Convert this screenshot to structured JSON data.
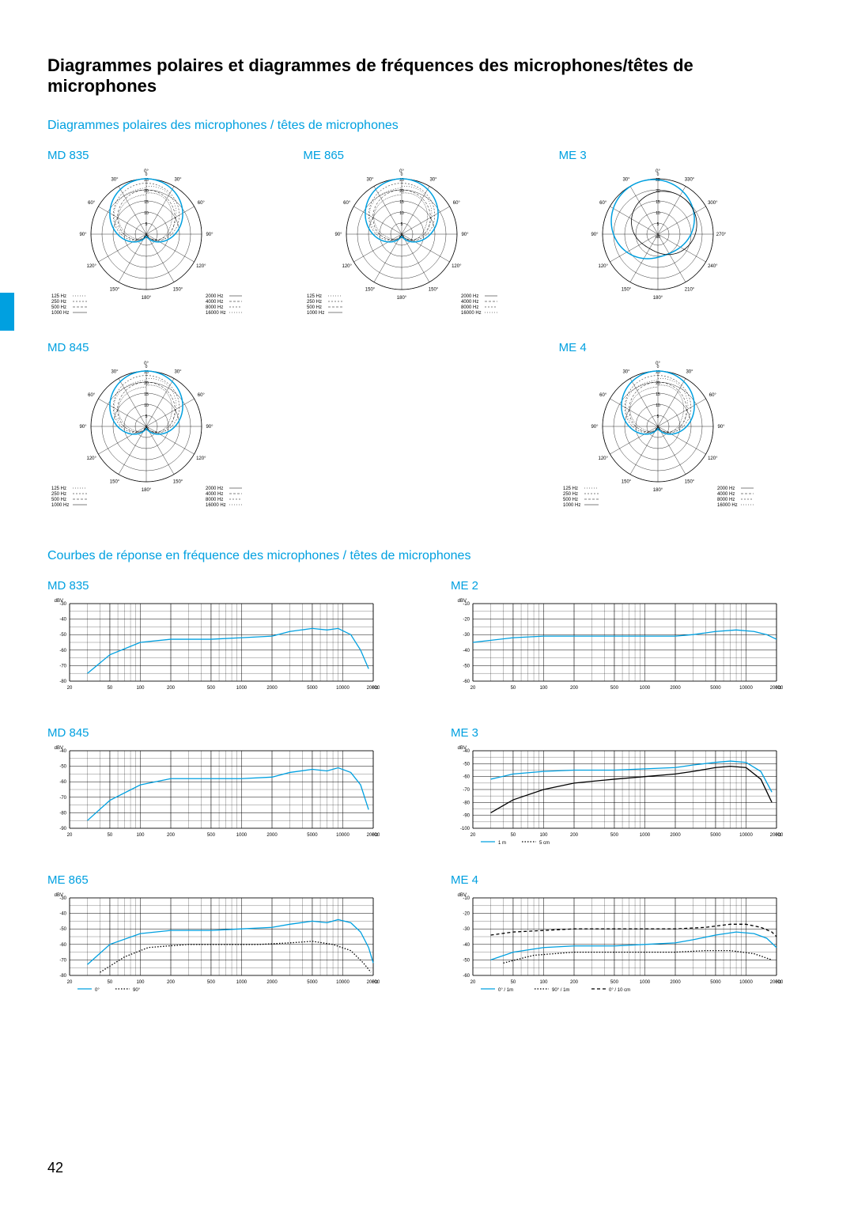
{
  "page": {
    "title": "Diagrammes polaires et diagrammes de fréquences des microphones/têtes de microphones",
    "page_number": "42"
  },
  "sections": {
    "polar": {
      "heading": "Diagrammes polaires des microphones / têtes de microphones"
    },
    "freq": {
      "heading": "Courbes de réponse en fréquence des microphones / têtes de microphones"
    }
  },
  "polar_charts": [
    {
      "id": "md835",
      "title": "MD 835",
      "type": "cardioid",
      "with_legend": true
    },
    {
      "id": "me865",
      "title": "ME 865",
      "type": "cardioid",
      "with_legend": true
    },
    {
      "id": "me3",
      "title": "ME 3",
      "type": "full360",
      "with_legend": false
    },
    {
      "id": "md845",
      "title": "MD 845",
      "type": "cardioid",
      "with_legend": true
    },
    {
      "id": "empty",
      "title": "",
      "type": "none",
      "with_legend": false
    },
    {
      "id": "me4",
      "title": "ME 4",
      "type": "cardioid",
      "with_legend": true
    }
  ],
  "polar_style": {
    "angle_labels_half": [
      "0°",
      "30°",
      "60°",
      "90°",
      "120°",
      "150°",
      "180°",
      "150°",
      "120°",
      "90°",
      "60°",
      "30°"
    ],
    "angle_labels_full": [
      "0°",
      "330°",
      "300°",
      "270°",
      "240°",
      "210°",
      "180°",
      "150°",
      "120°",
      "90°",
      "60°",
      "30°"
    ],
    "db_rings": [
      5,
      10,
      15,
      20,
      25
    ],
    "db_label": "dB",
    "legend_left": [
      "125 Hz",
      "250 Hz",
      "500 Hz",
      "1000 Hz"
    ],
    "legend_right": [
      "2000 Hz",
      "4000 Hz",
      "8000 Hz",
      "16000 Hz"
    ],
    "grid_color": "#000000",
    "highlight_color": "#00a0e0",
    "fontsize": 6
  },
  "freq_charts": [
    {
      "id": "md835",
      "title": "MD 835",
      "ymin": -80,
      "ymax": -30,
      "ystep": 10,
      "unit": "dBV",
      "curves": [
        {
          "color": "#00a0e0",
          "style": "solid",
          "pts": [
            [
              30,
              -75
            ],
            [
              50,
              -63
            ],
            [
              100,
              -55
            ],
            [
              200,
              -53
            ],
            [
              500,
              -53
            ],
            [
              1000,
              -52
            ],
            [
              2000,
              -51
            ],
            [
              3000,
              -48
            ],
            [
              5000,
              -46
            ],
            [
              7000,
              -47
            ],
            [
              9000,
              -46
            ],
            [
              12000,
              -50
            ],
            [
              15000,
              -60
            ],
            [
              18000,
              -72
            ]
          ]
        }
      ]
    },
    {
      "id": "me2",
      "title": "ME 2",
      "ymin": -60,
      "ymax": -10,
      "ystep": 10,
      "unit": "dBV",
      "curves": [
        {
          "color": "#00a0e0",
          "style": "solid",
          "pts": [
            [
              20,
              -35
            ],
            [
              50,
              -32
            ],
            [
              100,
              -31
            ],
            [
              200,
              -31
            ],
            [
              500,
              -31
            ],
            [
              1000,
              -31
            ],
            [
              2000,
              -31
            ],
            [
              3000,
              -30
            ],
            [
              5000,
              -28
            ],
            [
              8000,
              -27
            ],
            [
              12000,
              -28
            ],
            [
              16000,
              -30
            ],
            [
              20000,
              -33
            ]
          ]
        }
      ]
    },
    {
      "id": "md845",
      "title": "MD 845",
      "ymin": -90,
      "ymax": -40,
      "ystep": 10,
      "unit": "dBV",
      "curves": [
        {
          "color": "#00a0e0",
          "style": "solid",
          "pts": [
            [
              30,
              -85
            ],
            [
              50,
              -72
            ],
            [
              100,
              -62
            ],
            [
              200,
              -58
            ],
            [
              500,
              -58
            ],
            [
              1000,
              -58
            ],
            [
              2000,
              -57
            ],
            [
              3000,
              -54
            ],
            [
              5000,
              -52
            ],
            [
              7000,
              -53
            ],
            [
              9000,
              -51
            ],
            [
              12000,
              -54
            ],
            [
              15000,
              -62
            ],
            [
              18000,
              -78
            ]
          ]
        }
      ]
    },
    {
      "id": "me3",
      "title": "ME 3",
      "ymin": -100,
      "ymax": -40,
      "ystep": 10,
      "unit": "dBV",
      "legend_items": [
        "1 m",
        "5 cm"
      ],
      "curves": [
        {
          "color": "#000000",
          "style": "solid",
          "pts": [
            [
              30,
              -88
            ],
            [
              50,
              -78
            ],
            [
              100,
              -70
            ],
            [
              200,
              -65
            ],
            [
              500,
              -62
            ],
            [
              1000,
              -60
            ],
            [
              2000,
              -58
            ],
            [
              3000,
              -56
            ],
            [
              5000,
              -53
            ],
            [
              7000,
              -52
            ],
            [
              10000,
              -53
            ],
            [
              14000,
              -62
            ],
            [
              18000,
              -80
            ]
          ]
        },
        {
          "color": "#00a0e0",
          "style": "solid",
          "pts": [
            [
              30,
              -62
            ],
            [
              50,
              -58
            ],
            [
              100,
              -56
            ],
            [
              200,
              -55
            ],
            [
              500,
              -55
            ],
            [
              1000,
              -54
            ],
            [
              2000,
              -53
            ],
            [
              3000,
              -51
            ],
            [
              5000,
              -49
            ],
            [
              7000,
              -48
            ],
            [
              10000,
              -49
            ],
            [
              14000,
              -56
            ],
            [
              18000,
              -72
            ]
          ]
        }
      ]
    },
    {
      "id": "me865",
      "title": "ME 865",
      "ymin": -80,
      "ymax": -30,
      "ystep": 10,
      "unit": "dBV",
      "legend_items": [
        "0°",
        "90°"
      ],
      "curves": [
        {
          "color": "#00a0e0",
          "style": "solid",
          "pts": [
            [
              30,
              -73
            ],
            [
              50,
              -60
            ],
            [
              100,
              -53
            ],
            [
              200,
              -51
            ],
            [
              500,
              -51
            ],
            [
              1000,
              -50
            ],
            [
              2000,
              -49
            ],
            [
              3000,
              -47
            ],
            [
              5000,
              -45
            ],
            [
              7000,
              -46
            ],
            [
              9000,
              -44
            ],
            [
              12000,
              -46
            ],
            [
              15000,
              -52
            ],
            [
              18000,
              -62
            ],
            [
              20000,
              -72
            ]
          ]
        },
        {
          "color": "#000000",
          "style": "dotted",
          "pts": [
            [
              40,
              -78
            ],
            [
              70,
              -68
            ],
            [
              120,
              -62
            ],
            [
              300,
              -60
            ],
            [
              700,
              -60
            ],
            [
              1500,
              -60
            ],
            [
              3000,
              -59
            ],
            [
              5000,
              -58
            ],
            [
              8000,
              -60
            ],
            [
              12000,
              -64
            ],
            [
              16000,
              -72
            ],
            [
              19000,
              -78
            ]
          ]
        }
      ]
    },
    {
      "id": "me4",
      "title": "ME 4",
      "ymin": -60,
      "ymax": -10,
      "ystep": 10,
      "unit": "dBV",
      "legend_items": [
        "0° / 1m",
        "90° / 1m",
        "0° / 10 cm"
      ],
      "curves": [
        {
          "color": "#00a0e0",
          "style": "solid",
          "pts": [
            [
              30,
              -50
            ],
            [
              50,
              -45
            ],
            [
              100,
              -42
            ],
            [
              200,
              -41
            ],
            [
              500,
              -41
            ],
            [
              1000,
              -40
            ],
            [
              2000,
              -39
            ],
            [
              3000,
              -37
            ],
            [
              5000,
              -34
            ],
            [
              8000,
              -32
            ],
            [
              12000,
              -33
            ],
            [
              16000,
              -36
            ],
            [
              20000,
              -42
            ]
          ]
        },
        {
          "color": "#000000",
          "style": "dotted",
          "pts": [
            [
              40,
              -52
            ],
            [
              80,
              -47
            ],
            [
              200,
              -45
            ],
            [
              500,
              -45
            ],
            [
              1000,
              -45
            ],
            [
              2000,
              -45
            ],
            [
              4000,
              -44
            ],
            [
              7000,
              -44
            ],
            [
              12000,
              -46
            ],
            [
              18000,
              -50
            ]
          ]
        },
        {
          "color": "#000000",
          "style": "dashed",
          "pts": [
            [
              30,
              -34
            ],
            [
              50,
              -32
            ],
            [
              100,
              -31
            ],
            [
              200,
              -30
            ],
            [
              500,
              -30
            ],
            [
              1000,
              -30
            ],
            [
              2000,
              -30
            ],
            [
              4000,
              -29
            ],
            [
              7000,
              -27
            ],
            [
              10000,
              -27
            ],
            [
              14000,
              -29
            ],
            [
              18000,
              -32
            ],
            [
              20000,
              -35
            ]
          ]
        }
      ]
    }
  ],
  "freq_style": {
    "x_ticks": [
      20,
      50,
      100,
      200,
      500,
      1000,
      2000,
      5000,
      10000,
      20000
    ],
    "x_unit": "Hz",
    "grid_color": "#000000",
    "grid_minor_color": "#000000",
    "grid_weight": 0.4,
    "font_size": 6
  }
}
